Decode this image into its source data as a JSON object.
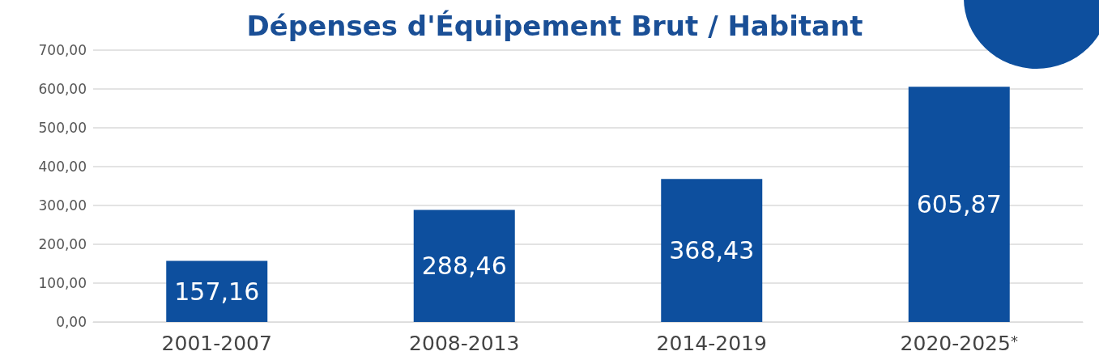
{
  "chart_data": {
    "type": "bar",
    "title": "Dépenses d'Équipement Brut / Habitant",
    "categories": [
      "2001-2007",
      "2008-2013",
      "2014-2019",
      "2020-2025$^{*}$"
    ],
    "values": [
      157.16,
      288.46,
      368.43,
      605.87
    ],
    "value_labels": [
      "157,16",
      "288,46",
      "368,43",
      "605,87"
    ],
    "color": "#0d4f9e",
    "ylim": [
      0,
      700
    ],
    "yticks": [
      {
        "value": 0,
        "label": "0,00"
      },
      {
        "value": 100,
        "label": "100,00"
      },
      {
        "value": 200,
        "label": "200,00"
      },
      {
        "value": 300,
        "label": "300,00"
      },
      {
        "value": 400,
        "label": "400,00"
      },
      {
        "value": 500,
        "label": "500,00"
      },
      {
        "value": 600,
        "label": "600,00"
      },
      {
        "value": 700,
        "label": "700,00"
      }
    ],
    "grid": "y"
  }
}
